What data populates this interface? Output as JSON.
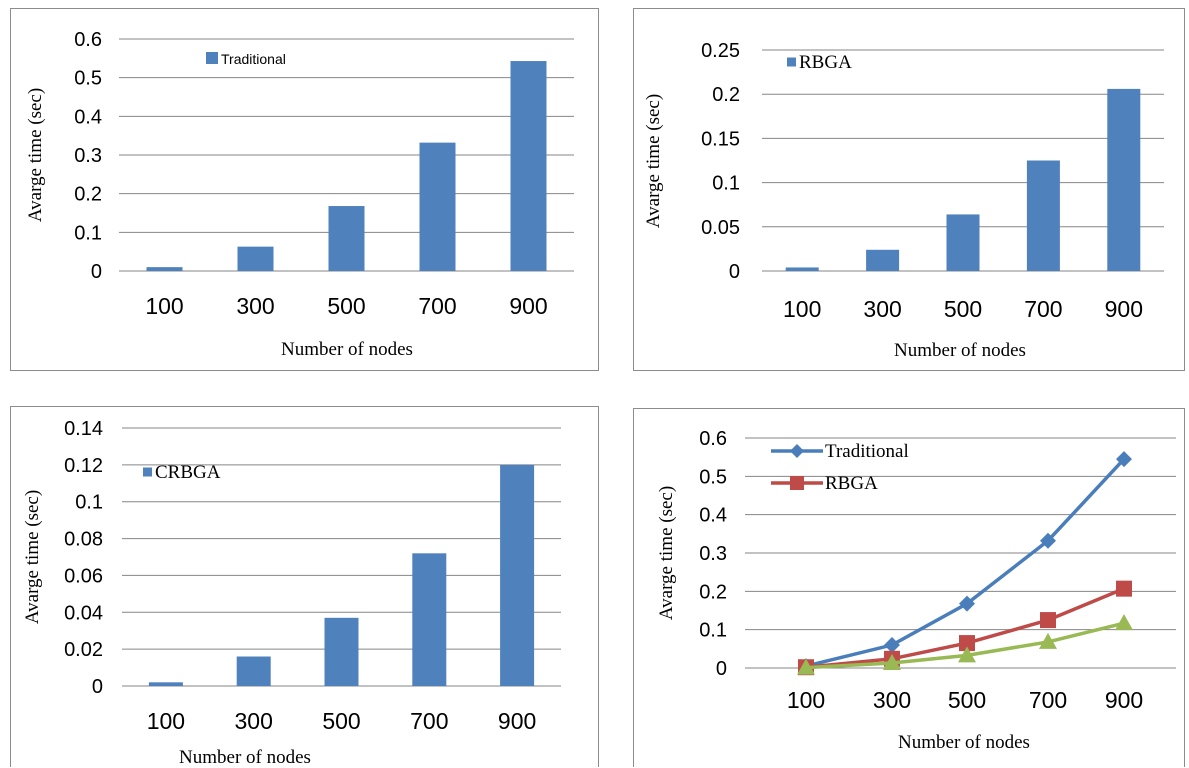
{
  "chart_data": [
    {
      "type": "bar",
      "categories": [
        "100",
        "300",
        "500",
        "700",
        "900"
      ],
      "series": [
        {
          "name": "Traditional",
          "values": [
            0.01,
            0.063,
            0.168,
            0.332,
            0.543
          ],
          "color": "#4f81bd"
        }
      ],
      "xlabel": "Number of nodes",
      "ylabel": "Avarge time (sec)",
      "ylim": [
        0,
        0.6
      ],
      "yticks": [
        "0",
        "0.1",
        "0.2",
        "0.3",
        "0.4",
        "0.5",
        "0.6"
      ],
      "grid": true,
      "legend": "top-left"
    },
    {
      "type": "bar",
      "categories": [
        "100",
        "300",
        "500",
        "700",
        "900"
      ],
      "series": [
        {
          "name": "RBGA",
          "values": [
            0.004,
            0.024,
            0.064,
            0.125,
            0.206
          ],
          "color": "#4f81bd"
        }
      ],
      "xlabel": "Number of nodes",
      "ylabel": "Avarge time (sec)",
      "ylim": [
        0,
        0.25
      ],
      "yticks": [
        "0",
        "0.05",
        "0.1",
        "0.15",
        "0.2",
        "0.25"
      ],
      "grid": true,
      "legend": "top-left"
    },
    {
      "type": "bar",
      "categories": [
        "100",
        "300",
        "500",
        "700",
        "900"
      ],
      "series": [
        {
          "name": "CRBGA",
          "values": [
            0.002,
            0.016,
            0.037,
            0.072,
            0.12
          ],
          "color": "#4f81bd"
        }
      ],
      "xlabel": "Number of nodes",
      "ylabel": "Avarge time (sec)",
      "ylim": [
        0,
        0.14
      ],
      "yticks": [
        "0",
        "0.02",
        "0.04",
        "0.06",
        "0.08",
        "0.1",
        "0.12",
        "0.14"
      ],
      "grid": true,
      "legend": "top-left"
    },
    {
      "type": "line",
      "categories": [
        "100",
        "300",
        "500",
        "700",
        "900"
      ],
      "series": [
        {
          "name": "Traditional",
          "values": [
            0.005,
            0.06,
            0.168,
            0.332,
            0.545
          ],
          "color": "#4a7ebb",
          "marker": "diamond"
        },
        {
          "name": "RBGA",
          "values": [
            0.002,
            0.024,
            0.065,
            0.125,
            0.207
          ],
          "color": "#be4b48",
          "marker": "square"
        },
        {
          "name": "",
          "values": [
            0.001,
            0.013,
            0.033,
            0.068,
            0.117
          ],
          "color": "#98b954",
          "marker": "triangle"
        }
      ],
      "xlabel": "Number of nodes",
      "ylabel": "Avarge time (sec)",
      "ylim": [
        0,
        0.6
      ],
      "yticks": [
        "0",
        "0.1",
        "0.2",
        "0.3",
        "0.4",
        "0.5",
        "0.6"
      ],
      "grid": true,
      "legend": "top-left"
    }
  ]
}
